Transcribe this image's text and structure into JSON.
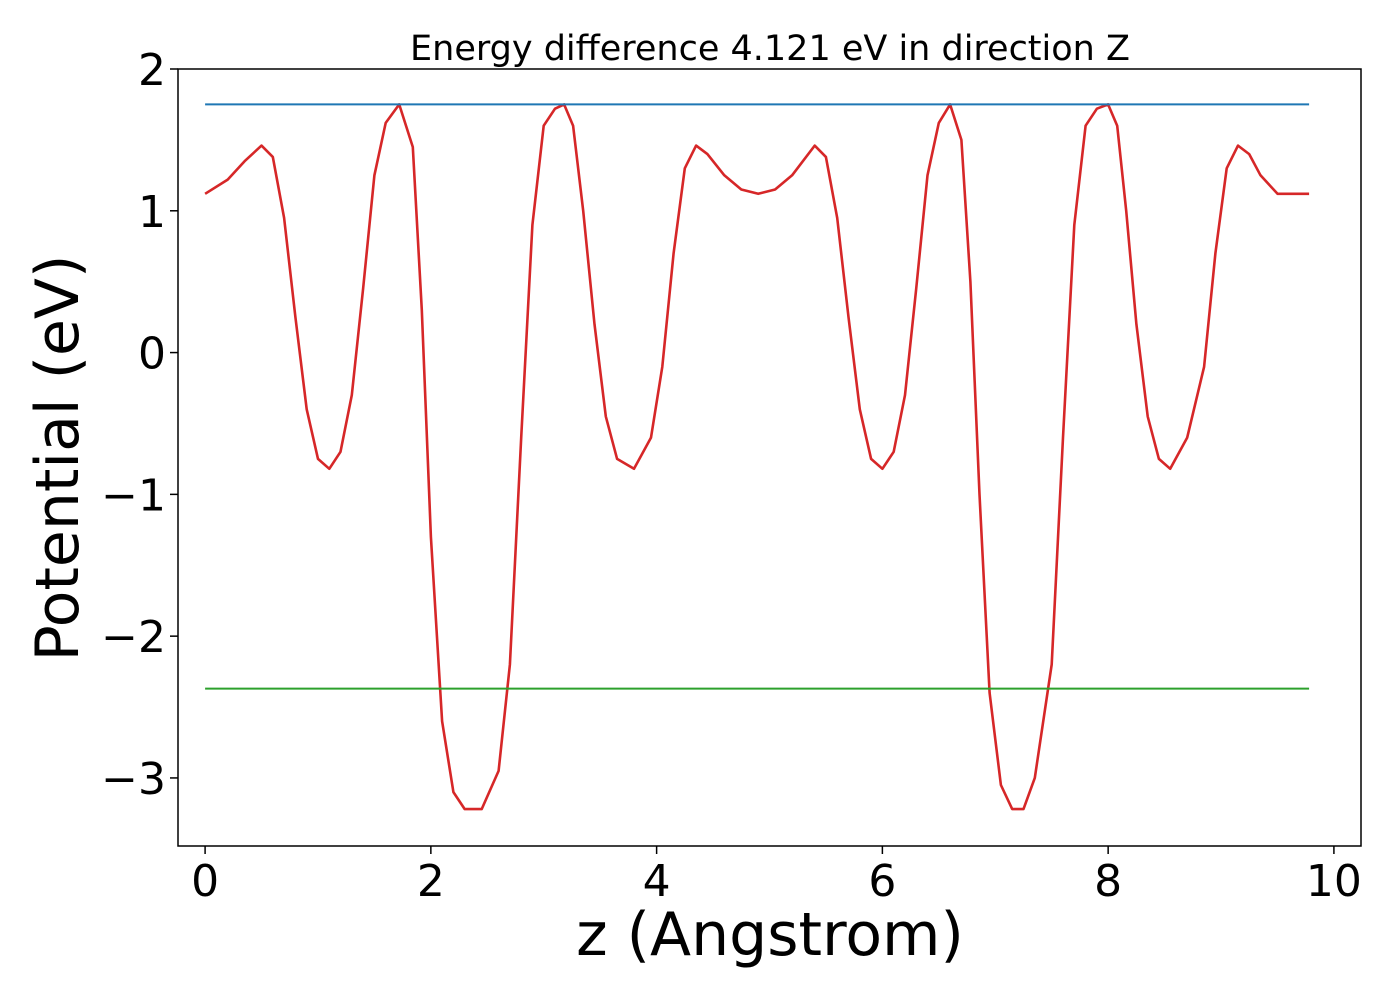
{
  "chart_data": {
    "type": "line",
    "title": "Energy difference 4.121 eV in direction Z",
    "xlabel": "z (Angstrom)",
    "ylabel": "Potential (eV)",
    "xlim": [
      -0.24,
      10.24
    ],
    "ylim": [
      -3.48,
      2.0
    ],
    "x_ticks": [
      0,
      2,
      4,
      6,
      8,
      10
    ],
    "x_tick_labels": [
      "0",
      "2",
      "4",
      "6",
      "8",
      "10"
    ],
    "y_ticks": [
      2,
      1,
      0,
      -1,
      -2,
      -3
    ],
    "y_tick_labels": [
      "2",
      "1",
      "0",
      "−1",
      "−2",
      "−3"
    ],
    "grid": false,
    "legend": false,
    "series": [
      {
        "color": "#d62728",
        "x": [
          0.0,
          0.2,
          0.35,
          0.5,
          0.6,
          0.7,
          0.8,
          0.9,
          1.0,
          1.1,
          1.2,
          1.3,
          1.4,
          1.5,
          1.6,
          1.72,
          1.84,
          1.92,
          2.0,
          2.1,
          2.2,
          2.3,
          2.45,
          2.6,
          2.7,
          2.8,
          2.9,
          3.0,
          3.1,
          3.18,
          3.26,
          3.35,
          3.45,
          3.55,
          3.65,
          3.8,
          3.95,
          4.05,
          4.15,
          4.25,
          4.35,
          4.45,
          4.6,
          4.75,
          4.9,
          5.05,
          5.2,
          5.4,
          5.5,
          5.6,
          5.7,
          5.8,
          5.9,
          6.0,
          6.1,
          6.2,
          6.3,
          6.4,
          6.5,
          6.6,
          6.7,
          6.78,
          6.86,
          6.95,
          7.05,
          7.15,
          7.25,
          7.35,
          7.5,
          7.6,
          7.7,
          7.8,
          7.9,
          8.0,
          8.08,
          8.16,
          8.25,
          8.35,
          8.45,
          8.55,
          8.7,
          8.85,
          8.95,
          9.05,
          9.15,
          9.25,
          9.35,
          9.5,
          9.65,
          9.78
        ],
        "y": [
          1.12,
          1.22,
          1.35,
          1.46,
          1.38,
          0.95,
          0.25,
          -0.4,
          -0.75,
          -0.82,
          -0.7,
          -0.3,
          0.45,
          1.25,
          1.62,
          1.75,
          1.45,
          0.3,
          -1.3,
          -2.6,
          -3.1,
          -3.22,
          -3.22,
          -2.95,
          -2.2,
          -0.6,
          0.9,
          1.6,
          1.72,
          1.75,
          1.6,
          1.0,
          0.2,
          -0.45,
          -0.75,
          -0.82,
          -0.6,
          -0.1,
          0.7,
          1.3,
          1.46,
          1.4,
          1.25,
          1.15,
          1.12,
          1.15,
          1.25,
          1.46,
          1.38,
          0.95,
          0.25,
          -0.4,
          -0.75,
          -0.82,
          -0.7,
          -0.3,
          0.45,
          1.25,
          1.62,
          1.75,
          1.5,
          0.5,
          -1.0,
          -2.4,
          -3.05,
          -3.22,
          -3.22,
          -3.0,
          -2.2,
          -0.6,
          0.9,
          1.6,
          1.72,
          1.75,
          1.6,
          1.0,
          0.2,
          -0.45,
          -0.75,
          -0.82,
          -0.6,
          -0.1,
          0.7,
          1.3,
          1.46,
          1.4,
          1.25,
          1.12,
          1.12,
          1.12
        ]
      },
      {
        "color": "#1f77b4",
        "x": [
          0.0,
          9.78
        ],
        "y": [
          1.75,
          1.75
        ]
      },
      {
        "color": "#2ca02c",
        "x": [
          0.0,
          9.78
        ],
        "y": [
          -2.37,
          -2.37
        ]
      }
    ]
  }
}
